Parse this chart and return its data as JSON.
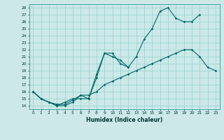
{
  "xlabel": "Humidex (Indice chaleur)",
  "bg_color": "#cce8e8",
  "line_color": "#006666",
  "xlim": [
    -0.5,
    23.5
  ],
  "ylim": [
    13.5,
    28.5
  ],
  "xticks": [
    0,
    1,
    2,
    3,
    4,
    5,
    6,
    7,
    8,
    9,
    10,
    11,
    12,
    13,
    14,
    15,
    16,
    17,
    18,
    19,
    20,
    21,
    22,
    23
  ],
  "yticks": [
    14,
    15,
    16,
    17,
    18,
    19,
    20,
    21,
    22,
    23,
    24,
    25,
    26,
    27,
    28
  ],
  "series": [
    {
      "x": [
        0,
        1,
        2,
        3,
        4,
        5,
        6,
        7,
        8,
        9,
        10,
        11,
        12,
        13,
        14,
        15,
        16,
        17,
        18,
        19,
        20,
        21
      ],
      "y": [
        16.0,
        15.0,
        14.5,
        14.0,
        14.0,
        14.5,
        15.5,
        15.0,
        18.0,
        21.5,
        21.5,
        20.0,
        19.5,
        21.0,
        23.5,
        25.0,
        27.5,
        28.0,
        26.5,
        26.0,
        26.0,
        27.0
      ]
    },
    {
      "x": [
        0,
        1,
        2,
        3,
        4,
        5,
        6,
        7,
        8,
        9,
        10,
        11,
        12
      ],
      "y": [
        16.0,
        15.0,
        14.5,
        14.0,
        14.5,
        15.0,
        15.0,
        15.0,
        18.5,
        21.5,
        21.0,
        20.5,
        19.5
      ]
    },
    {
      "x": [
        0,
        1,
        2,
        3,
        4,
        5,
        6,
        7,
        8,
        9,
        10,
        11,
        12,
        13,
        14,
        15,
        16,
        17,
        18,
        19,
        20,
        21,
        22,
        23
      ],
      "y": [
        16.0,
        15.0,
        14.5,
        14.2,
        14.2,
        14.8,
        15.5,
        15.5,
        16.0,
        17.0,
        17.5,
        18.0,
        18.5,
        19.0,
        19.5,
        20.0,
        20.5,
        21.0,
        21.5,
        22.0,
        22.0,
        21.0,
        19.5,
        19.0
      ]
    }
  ]
}
